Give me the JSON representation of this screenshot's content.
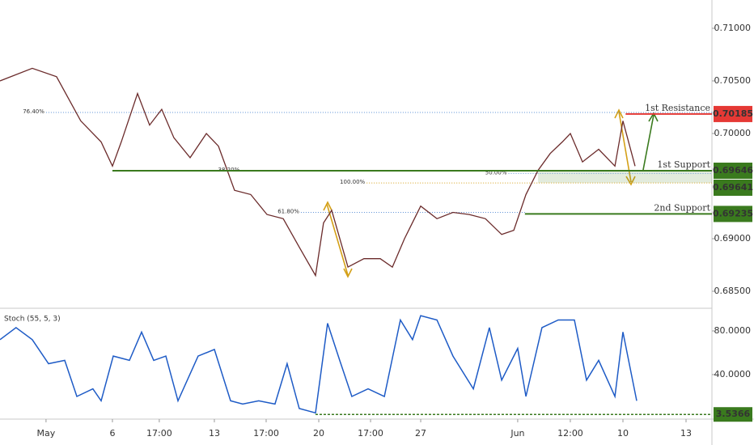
{
  "chart_data": [
    {
      "type": "line",
      "color": "#6b2b2b",
      "x": [
        -2.24,
        -0.67,
        0.51,
        1.69,
        2.68,
        3.23,
        3.66,
        4.45,
        5.04,
        5.63,
        6.22,
        7.01,
        7.8,
        8.39,
        9.17,
        9.96,
        10.75,
        11.54,
        12.32,
        13.11,
        13.5,
        13.9,
        14.69,
        15.47,
        16.26,
        16.85,
        17.44,
        18.23,
        19.02,
        19.8,
        20.59,
        21.38,
        22.17,
        22.76,
        23.35,
        23.94,
        24.53,
        25.12,
        25.51,
        26.1,
        26.89,
        27.68,
        28.07,
        28.66
      ],
      "values": [
        0.705,
        0.7062,
        0.7054,
        0.7012,
        0.6992,
        0.6969,
        0.6992,
        0.7038,
        0.7008,
        0.7023,
        0.6996,
        0.6977,
        0.7,
        0.6988,
        0.6946,
        0.6942,
        0.6923,
        0.6919,
        0.6892,
        0.6865,
        0.6915,
        0.6927,
        0.6873,
        0.6881,
        0.6881,
        0.6873,
        0.69,
        0.6931,
        0.6919,
        0.6925,
        0.6923,
        0.6919,
        0.6904,
        0.6908,
        0.6942,
        0.6965,
        0.6981,
        0.6992,
        0.7,
        0.6973,
        0.6985,
        0.6969,
        0.7012,
        0.6969
      ],
      "xlim": [
        -2.24,
        32.4
      ],
      "xticks": [
        {
          "value": 0,
          "label": "May"
        },
        {
          "value": 3.23,
          "label": "6"
        },
        {
          "value": 5.51,
          "label": "17:00"
        },
        {
          "value": 8.19,
          "label": "13"
        },
        {
          "value": 10.71,
          "label": "17:00"
        },
        {
          "value": 13.27,
          "label": "20"
        },
        {
          "value": 15.79,
          "label": "17:00"
        },
        {
          "value": 18.23,
          "label": "27"
        },
        {
          "value": 22.95,
          "label": "Jun"
        },
        {
          "value": 25.51,
          "label": "12:00"
        },
        {
          "value": 28.07,
          "label": "10"
        },
        {
          "value": 31.14,
          "label": "13"
        }
      ],
      "ylim": [
        0.68346,
        0.71269
      ],
      "yticks": [
        {
          "value": 0.685,
          "label": "0.68500"
        },
        {
          "value": 0.69,
          "label": "0.69000"
        },
        {
          "value": 0.7,
          "label": "0.70000"
        },
        {
          "value": 0.705,
          "label": "0.70500"
        },
        {
          "value": 0.71,
          "label": "0.71000"
        }
      ],
      "levels": [
        {
          "label": "1st Resistance",
          "value": 0.70185,
          "color": "#e53935",
          "x_start": 28.2
        },
        {
          "label": "1st Support",
          "value": 0.69646,
          "color": "#3a7a1e",
          "x_start": 3.23
        },
        {
          "label": "2nd Support",
          "value": 0.69235,
          "color": "#3a7a1e",
          "x_start": 23.3
        }
      ],
      "price_tags": [
        {
          "value": 0.69641,
          "color": "#3a7a1e"
        }
      ],
      "fib_levels": [
        {
          "label": "76.40%",
          "value": 0.702,
          "x_start": 0.0,
          "x_end": 32.4,
          "color": "#5b8fd6"
        },
        {
          "label": "61.80%",
          "value": 0.6925,
          "x_start": 12.4,
          "x_end": 23.3,
          "color": "#5b8fd6"
        },
        {
          "label": "38.20%",
          "value": 0.69646,
          "x_start": 9.5,
          "x_end": 11.5,
          "color": "#5b8fd6"
        },
        {
          "label": "50.00%",
          "value": 0.6962,
          "x_start": 22.5,
          "x_end": 32.4,
          "color": "#5b8fd6"
        },
        {
          "label": "100.00%",
          "value": 0.6953,
          "x_start": 15.6,
          "x_end": 32.4,
          "color": "#d4a017"
        }
      ]
    },
    {
      "type": "line",
      "title": "Stoch (55, 5, 3)",
      "color": "#1e5bc6",
      "x": [
        -2.24,
        -1.46,
        -0.67,
        0.12,
        0.91,
        1.5,
        2.28,
        2.68,
        3.27,
        4.06,
        4.65,
        5.24,
        5.83,
        6.42,
        7.4,
        8.19,
        8.98,
        9.57,
        10.35,
        11.14,
        11.73,
        12.32,
        13.11,
        13.7,
        14.29,
        14.88,
        15.67,
        16.46,
        17.24,
        17.83,
        18.23,
        19.02,
        19.8,
        20.79,
        21.57,
        22.17,
        22.95,
        23.35,
        24.13,
        24.92,
        25.71,
        26.3,
        26.89,
        27.68,
        28.07,
        28.74
      ],
      "values": [
        72,
        83,
        72,
        50,
        53,
        20,
        27,
        16,
        57,
        53,
        79,
        53,
        57,
        16,
        57,
        63,
        16,
        13,
        16,
        13,
        50,
        9,
        5,
        87,
        53,
        20,
        27,
        20,
        90,
        72,
        94,
        90,
        57,
        27,
        83,
        35,
        64,
        20,
        83,
        90,
        90,
        35,
        53,
        20,
        79,
        16
      ],
      "ylim": [
        0,
        100
      ],
      "yticks": [
        {
          "value": 40,
          "label": "40.0000"
        },
        {
          "value": 80,
          "label": "80.0000"
        }
      ],
      "level": {
        "value": 3.5366,
        "color": "#3a7a1e",
        "x_start": 13.11
      }
    }
  ]
}
